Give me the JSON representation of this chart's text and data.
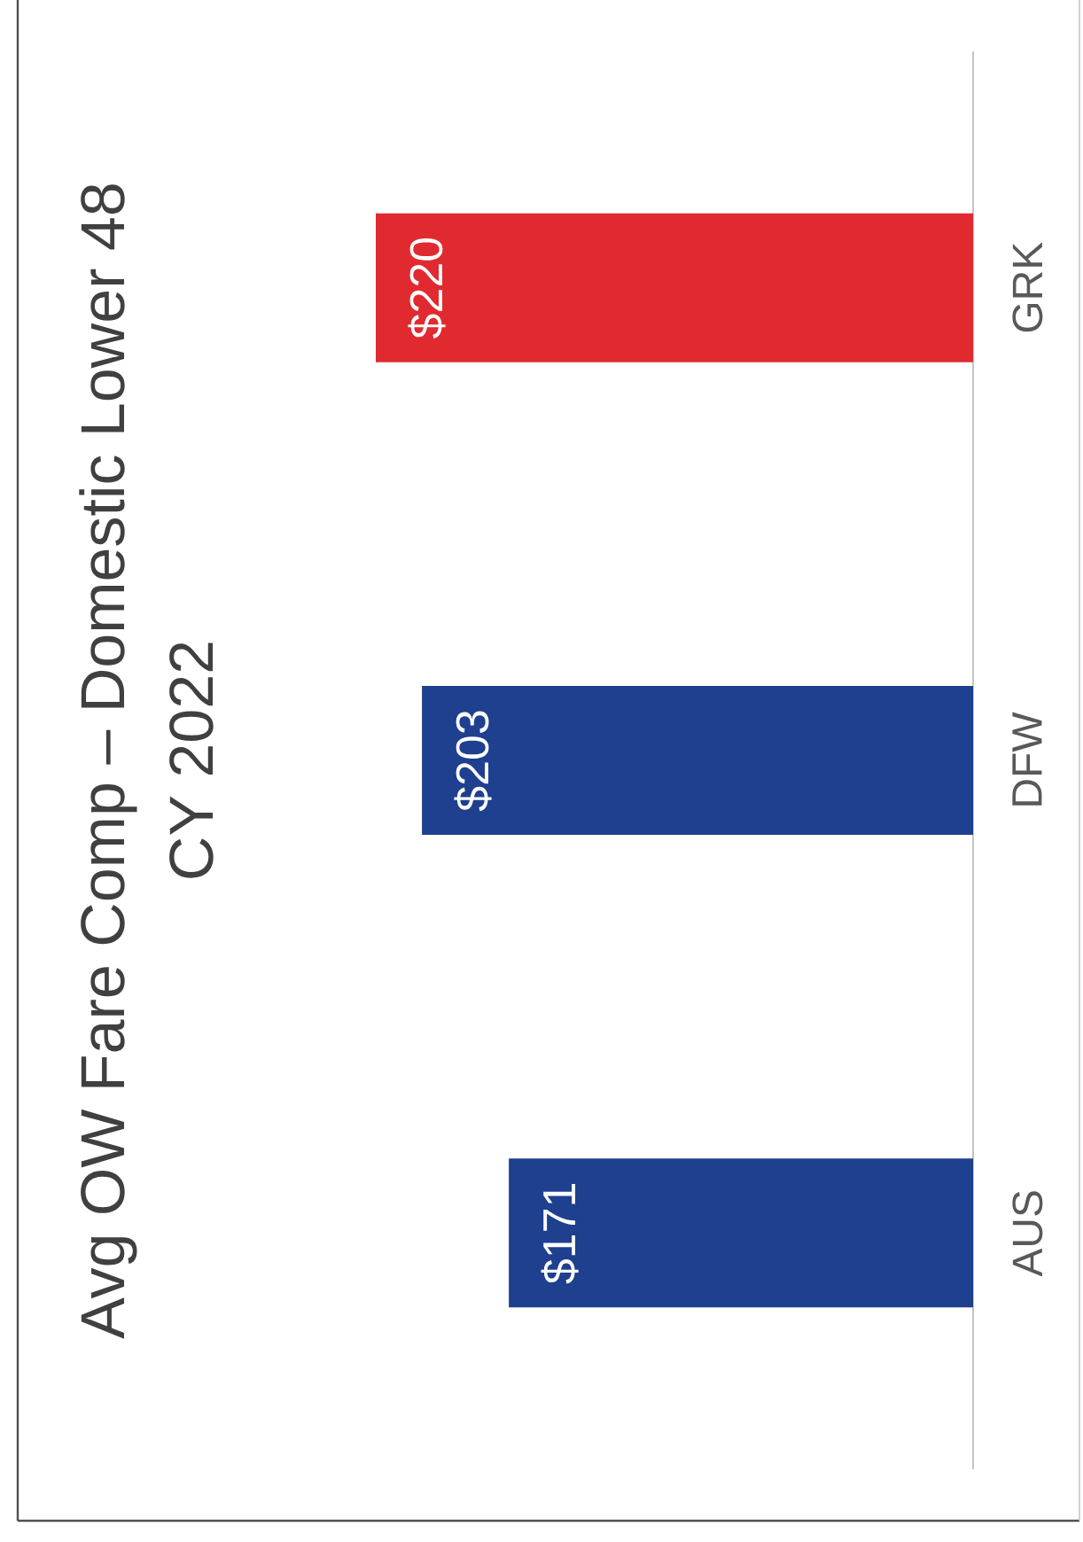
{
  "chart_data": {
    "type": "bar",
    "orientation": "horizontal",
    "title": "Avg OW Fare Comp – Domestic Lower 48",
    "subtitle": "CY 2022",
    "categories": [
      "GRK",
      "DFW",
      "AUS"
    ],
    "values": [
      220,
      203,
      171
    ],
    "colors": [
      "#e12a30",
      "#1f3f8f",
      "#1f3f8f"
    ],
    "value_labels": [
      "$220",
      "$203",
      "$171"
    ]
  }
}
